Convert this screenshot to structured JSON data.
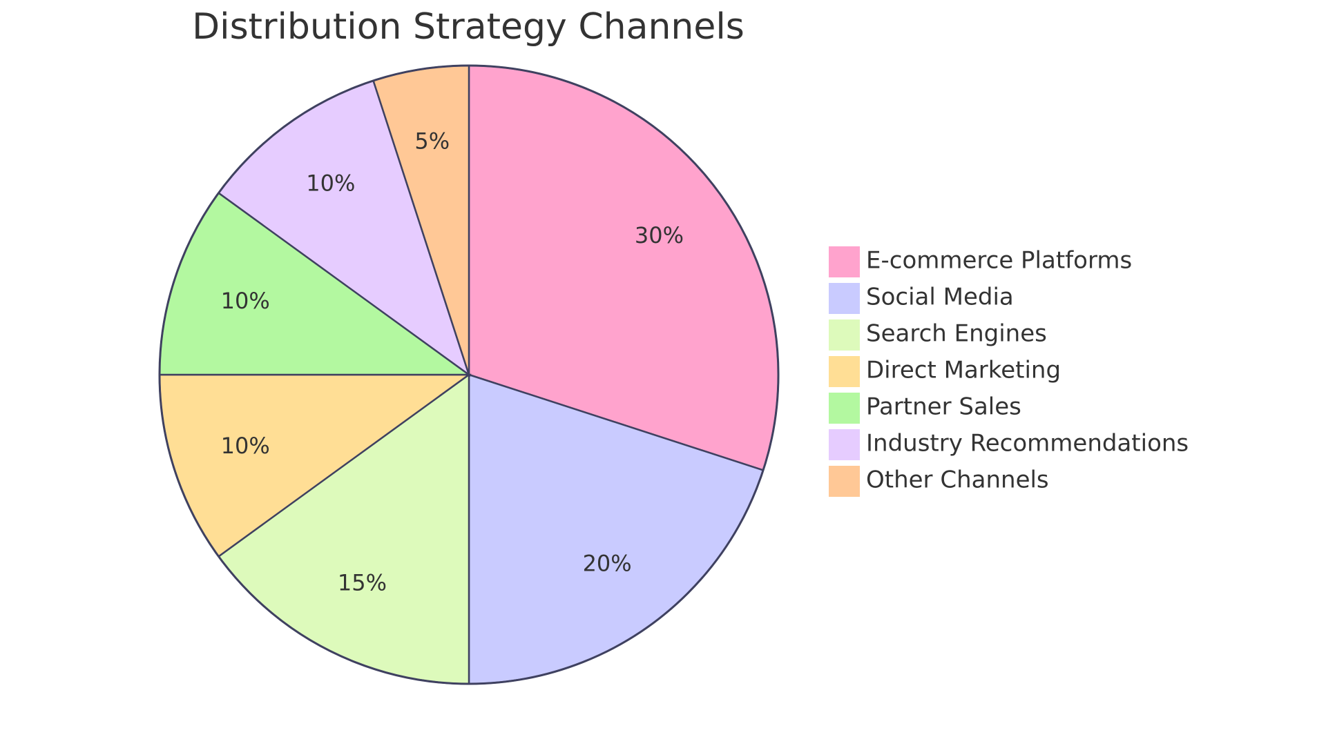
{
  "chart_data": {
    "type": "pie",
    "title": "Distribution Strategy Channels",
    "categories": [
      "E-commerce Platforms",
      "Social Media",
      "Search Engines",
      "Direct Marketing",
      "Partner Sales",
      "Industry Recommendations",
      "Other Channels"
    ],
    "values": [
      30,
      20,
      15,
      10,
      10,
      10,
      5
    ],
    "value_labels": [
      "30%",
      "20%",
      "15%",
      "10%",
      "10%",
      "10%",
      "5%"
    ],
    "colors": [
      "#ffa3cd",
      "#c9cbff",
      "#ddfabb",
      "#ffde95",
      "#b3f8a0",
      "#e6ccff",
      "#ffc896"
    ],
    "legend": "right"
  }
}
